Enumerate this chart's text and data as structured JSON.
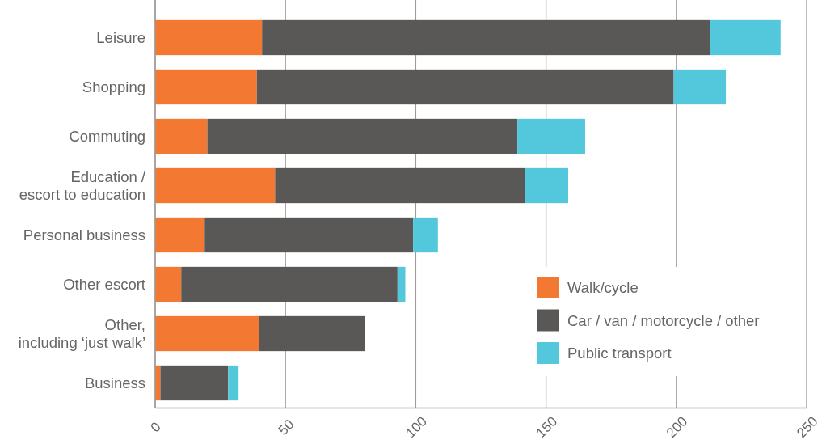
{
  "chart_data": {
    "type": "bar",
    "orientation": "horizontal",
    "stacked": true,
    "categories": [
      "Leisure",
      "Shopping",
      "Commuting",
      "Education /\nescort to education",
      "Personal business",
      "Other escort",
      "Other,\nincluding ‘just walk’",
      "Business"
    ],
    "series": [
      {
        "name": "Walk/cycle",
        "color": "#f37832",
        "values": [
          41,
          39,
          20,
          46,
          19,
          10,
          40,
          2
        ]
      },
      {
        "name": "Car / van / motorcycle / other",
        "color": "#5a5856",
        "values": [
          172,
          160,
          119,
          96,
          80,
          83,
          40.5,
          26
        ]
      },
      {
        "name": "Public transport",
        "color": "#53c7dc",
        "values": [
          27,
          20,
          26,
          16.5,
          9.5,
          3,
          0,
          4
        ]
      }
    ],
    "xlim": [
      0,
      250
    ],
    "xticks": [
      0,
      50,
      100,
      150,
      200,
      250
    ],
    "grid": "x",
    "legend": "bottom right"
  }
}
